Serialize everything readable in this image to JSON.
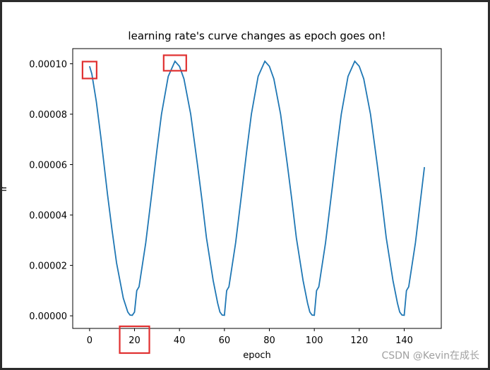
{
  "chart_data": {
    "type": "line",
    "title": "learning rate's curve changes as epoch goes on!",
    "xlabel": "epoch",
    "ylabel": "lr",
    "xlim": [
      -7.5,
      156.5
    ],
    "ylim": [
      -5e-06,
      0.000106
    ],
    "xticks": [
      0,
      20,
      40,
      60,
      80,
      100,
      120,
      140
    ],
    "yticks": [
      0.0,
      2e-05,
      4e-05,
      6e-05,
      8e-05,
      0.0001
    ],
    "ytick_labels": [
      "0.00000",
      "0.00002",
      "0.00004",
      "0.00006",
      "0.00008",
      "0.00010"
    ],
    "grid": false,
    "series": [
      {
        "color": "#1f77b4",
        "shape": "cosine-annealing-warm-restarts",
        "period_epochs": 40,
        "max_lr": 0.000101,
        "min_lr": 0.0,
        "x": [
          0,
          1,
          3,
          5,
          8,
          10,
          12,
          15,
          17,
          18,
          19,
          20,
          21,
          22,
          25,
          28,
          30,
          32,
          35,
          38,
          40,
          42,
          45,
          48,
          50,
          52,
          55,
          57,
          58,
          59,
          60,
          61,
          62,
          65,
          68,
          70,
          72,
          75,
          78,
          80,
          82,
          85,
          88,
          90,
          92,
          95,
          97,
          98,
          99,
          100,
          101,
          102,
          105,
          108,
          110,
          112,
          115,
          118,
          120,
          122,
          125,
          128,
          130,
          132,
          135,
          137,
          138,
          139,
          140,
          141,
          142,
          145,
          149
        ],
        "y": [
          9.9e-05,
          9.6e-05,
          8.5e-05,
          7.1e-05,
          4.8e-05,
          3.4e-05,
          2.1e-05,
          7e-06,
          1.5e-06,
          3e-07,
          2e-07,
          1.5e-06,
          1e-05,
          1.15e-05,
          2.9e-05,
          5.1e-05,
          6.6e-05,
          8e-05,
          9.5e-05,
          0.000101,
          9.9e-05,
          9.4e-05,
          8e-05,
          6e-05,
          4.6e-05,
          3.1e-05,
          1.4e-05,
          5e-06,
          1.5e-06,
          3e-07,
          2e-07,
          1e-05,
          1.15e-05,
          2.9e-05,
          5.1e-05,
          6.6e-05,
          8e-05,
          9.5e-05,
          0.000101,
          9.9e-05,
          9.4e-05,
          8e-05,
          6e-05,
          4.6e-05,
          3.1e-05,
          1.4e-05,
          5e-06,
          1.5e-06,
          3e-07,
          2e-07,
          1e-05,
          1.15e-05,
          2.9e-05,
          5.1e-05,
          6.6e-05,
          8e-05,
          9.5e-05,
          0.000101,
          9.9e-05,
          9.4e-05,
          8e-05,
          6e-05,
          4.6e-05,
          3.1e-05,
          1.4e-05,
          5e-06,
          1.5e-06,
          3e-07,
          2e-07,
          1e-05,
          1.15e-05,
          2.9e-05,
          5.9e-05
        ]
      }
    ],
    "annotations": [
      {
        "type": "box",
        "color": "#e03030",
        "target": "curve start near 0.00010 at epoch 0"
      },
      {
        "type": "box",
        "color": "#e03030",
        "target": "first peak near epoch 38"
      },
      {
        "type": "box",
        "color": "#e03030",
        "target": "x tick label 20"
      }
    ]
  },
  "watermark": "CSDN @Kevin在成长"
}
